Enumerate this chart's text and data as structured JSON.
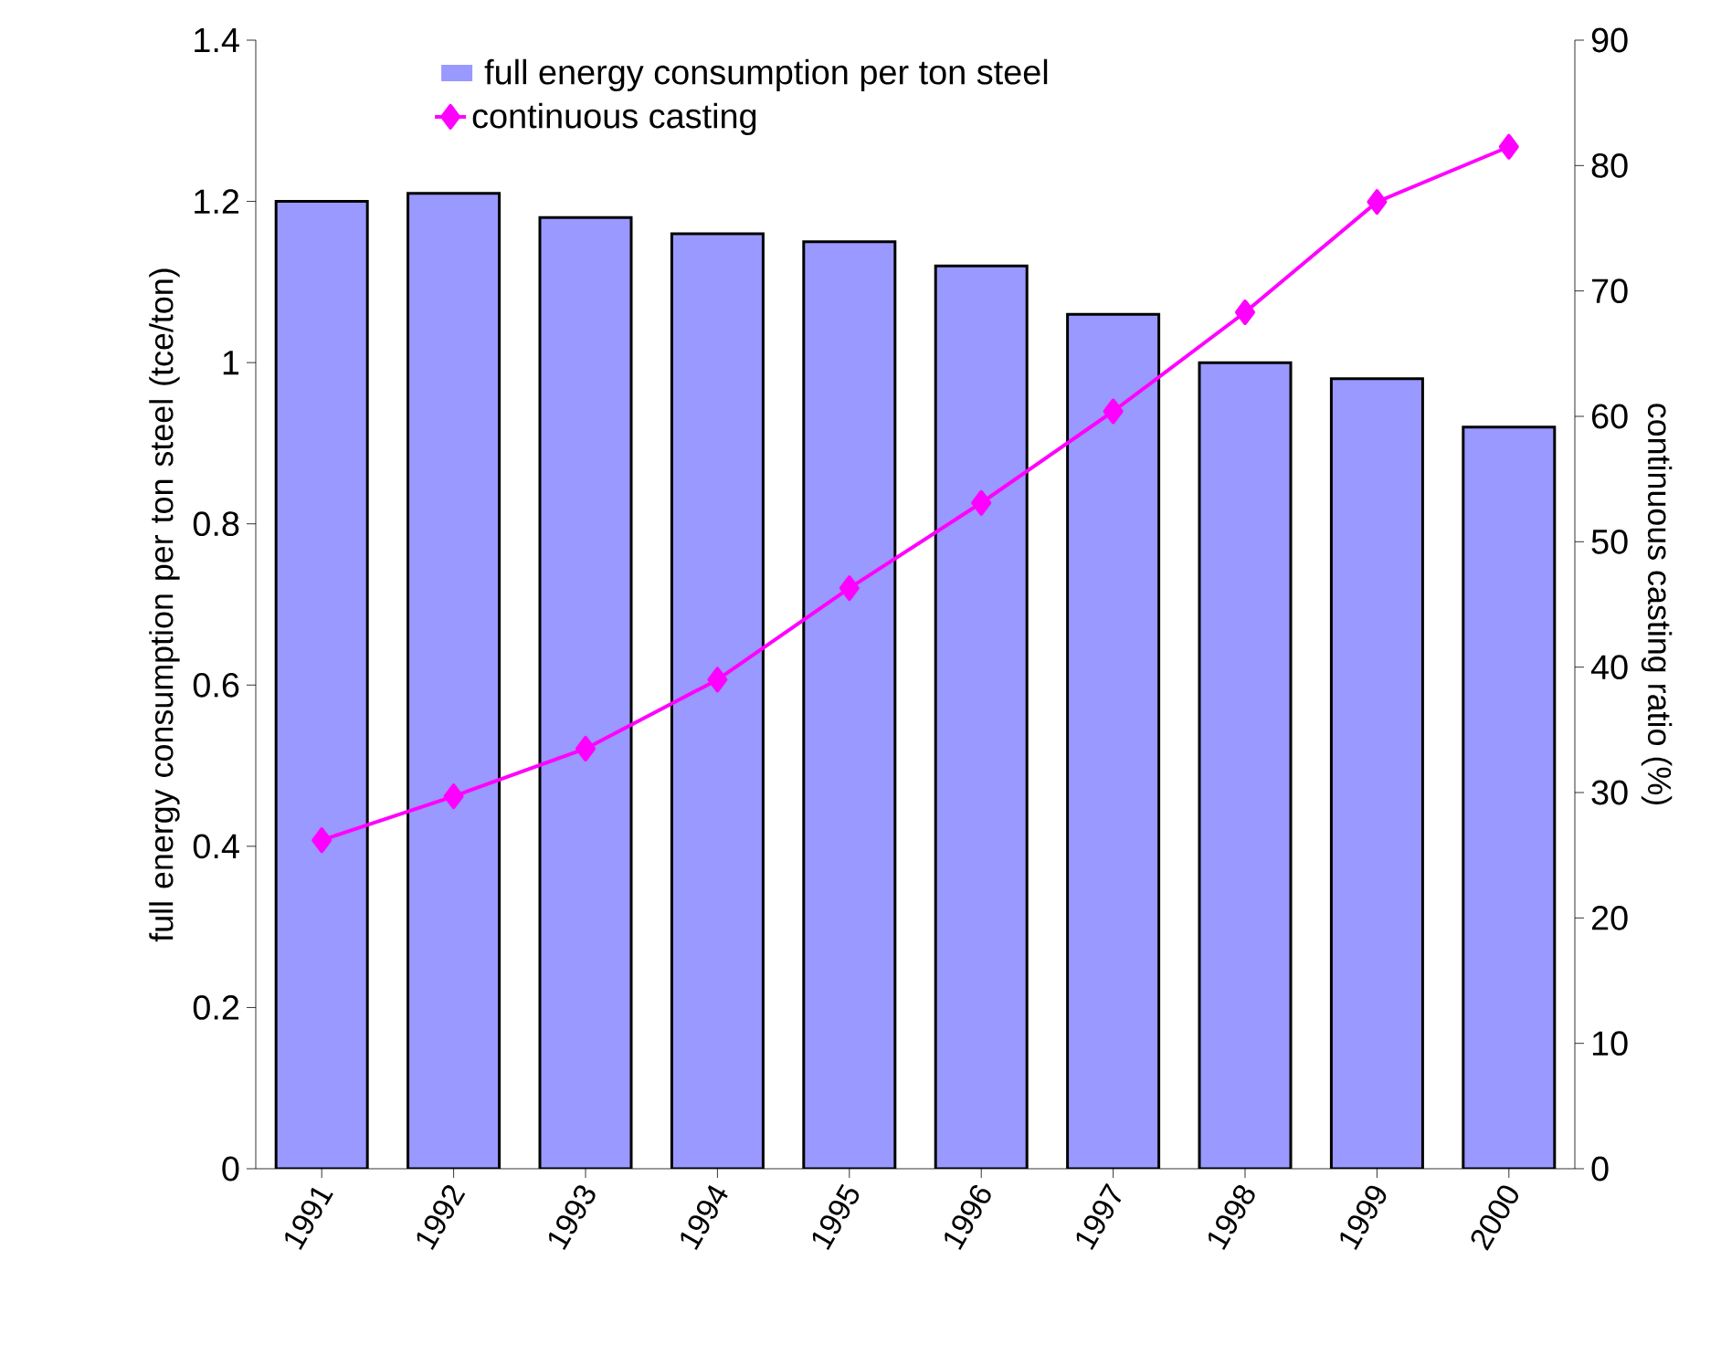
{
  "chart_data": {
    "type": "bar",
    "ylabel": "full energy consumption per ton steel (tce/ton)",
    "y2label": "continuous casting ratio (%)",
    "categories": [
      "1991",
      "1992",
      "1993",
      "1994",
      "1995",
      "1996",
      "1997",
      "1998",
      "1999",
      "2000"
    ],
    "series": [
      {
        "name": "full energy consumption per ton steel",
        "color": "#9999ff",
        "values": [
          1.2,
          1.21,
          1.18,
          1.16,
          1.15,
          1.12,
          1.06,
          1.0,
          0.98,
          0.92
        ]
      },
      {
        "name": "continuous casting",
        "type": "line",
        "axis": "y2",
        "color": "#ff00ff",
        "marker": "diamond",
        "values": [
          26.2,
          29.7,
          33.5,
          39.0,
          46.3,
          53.1,
          60.4,
          68.3,
          77.1,
          81.5
        ]
      }
    ],
    "ylim": [
      0,
      1.4
    ],
    "yticks": [
      0,
      0.2,
      0.4,
      0.6,
      0.8,
      1,
      1.2,
      1.4
    ],
    "y2lim": [
      0,
      90
    ],
    "y2ticks": [
      0,
      10,
      20,
      30,
      40,
      50,
      60,
      70,
      80,
      90
    ],
    "legend": "top"
  }
}
